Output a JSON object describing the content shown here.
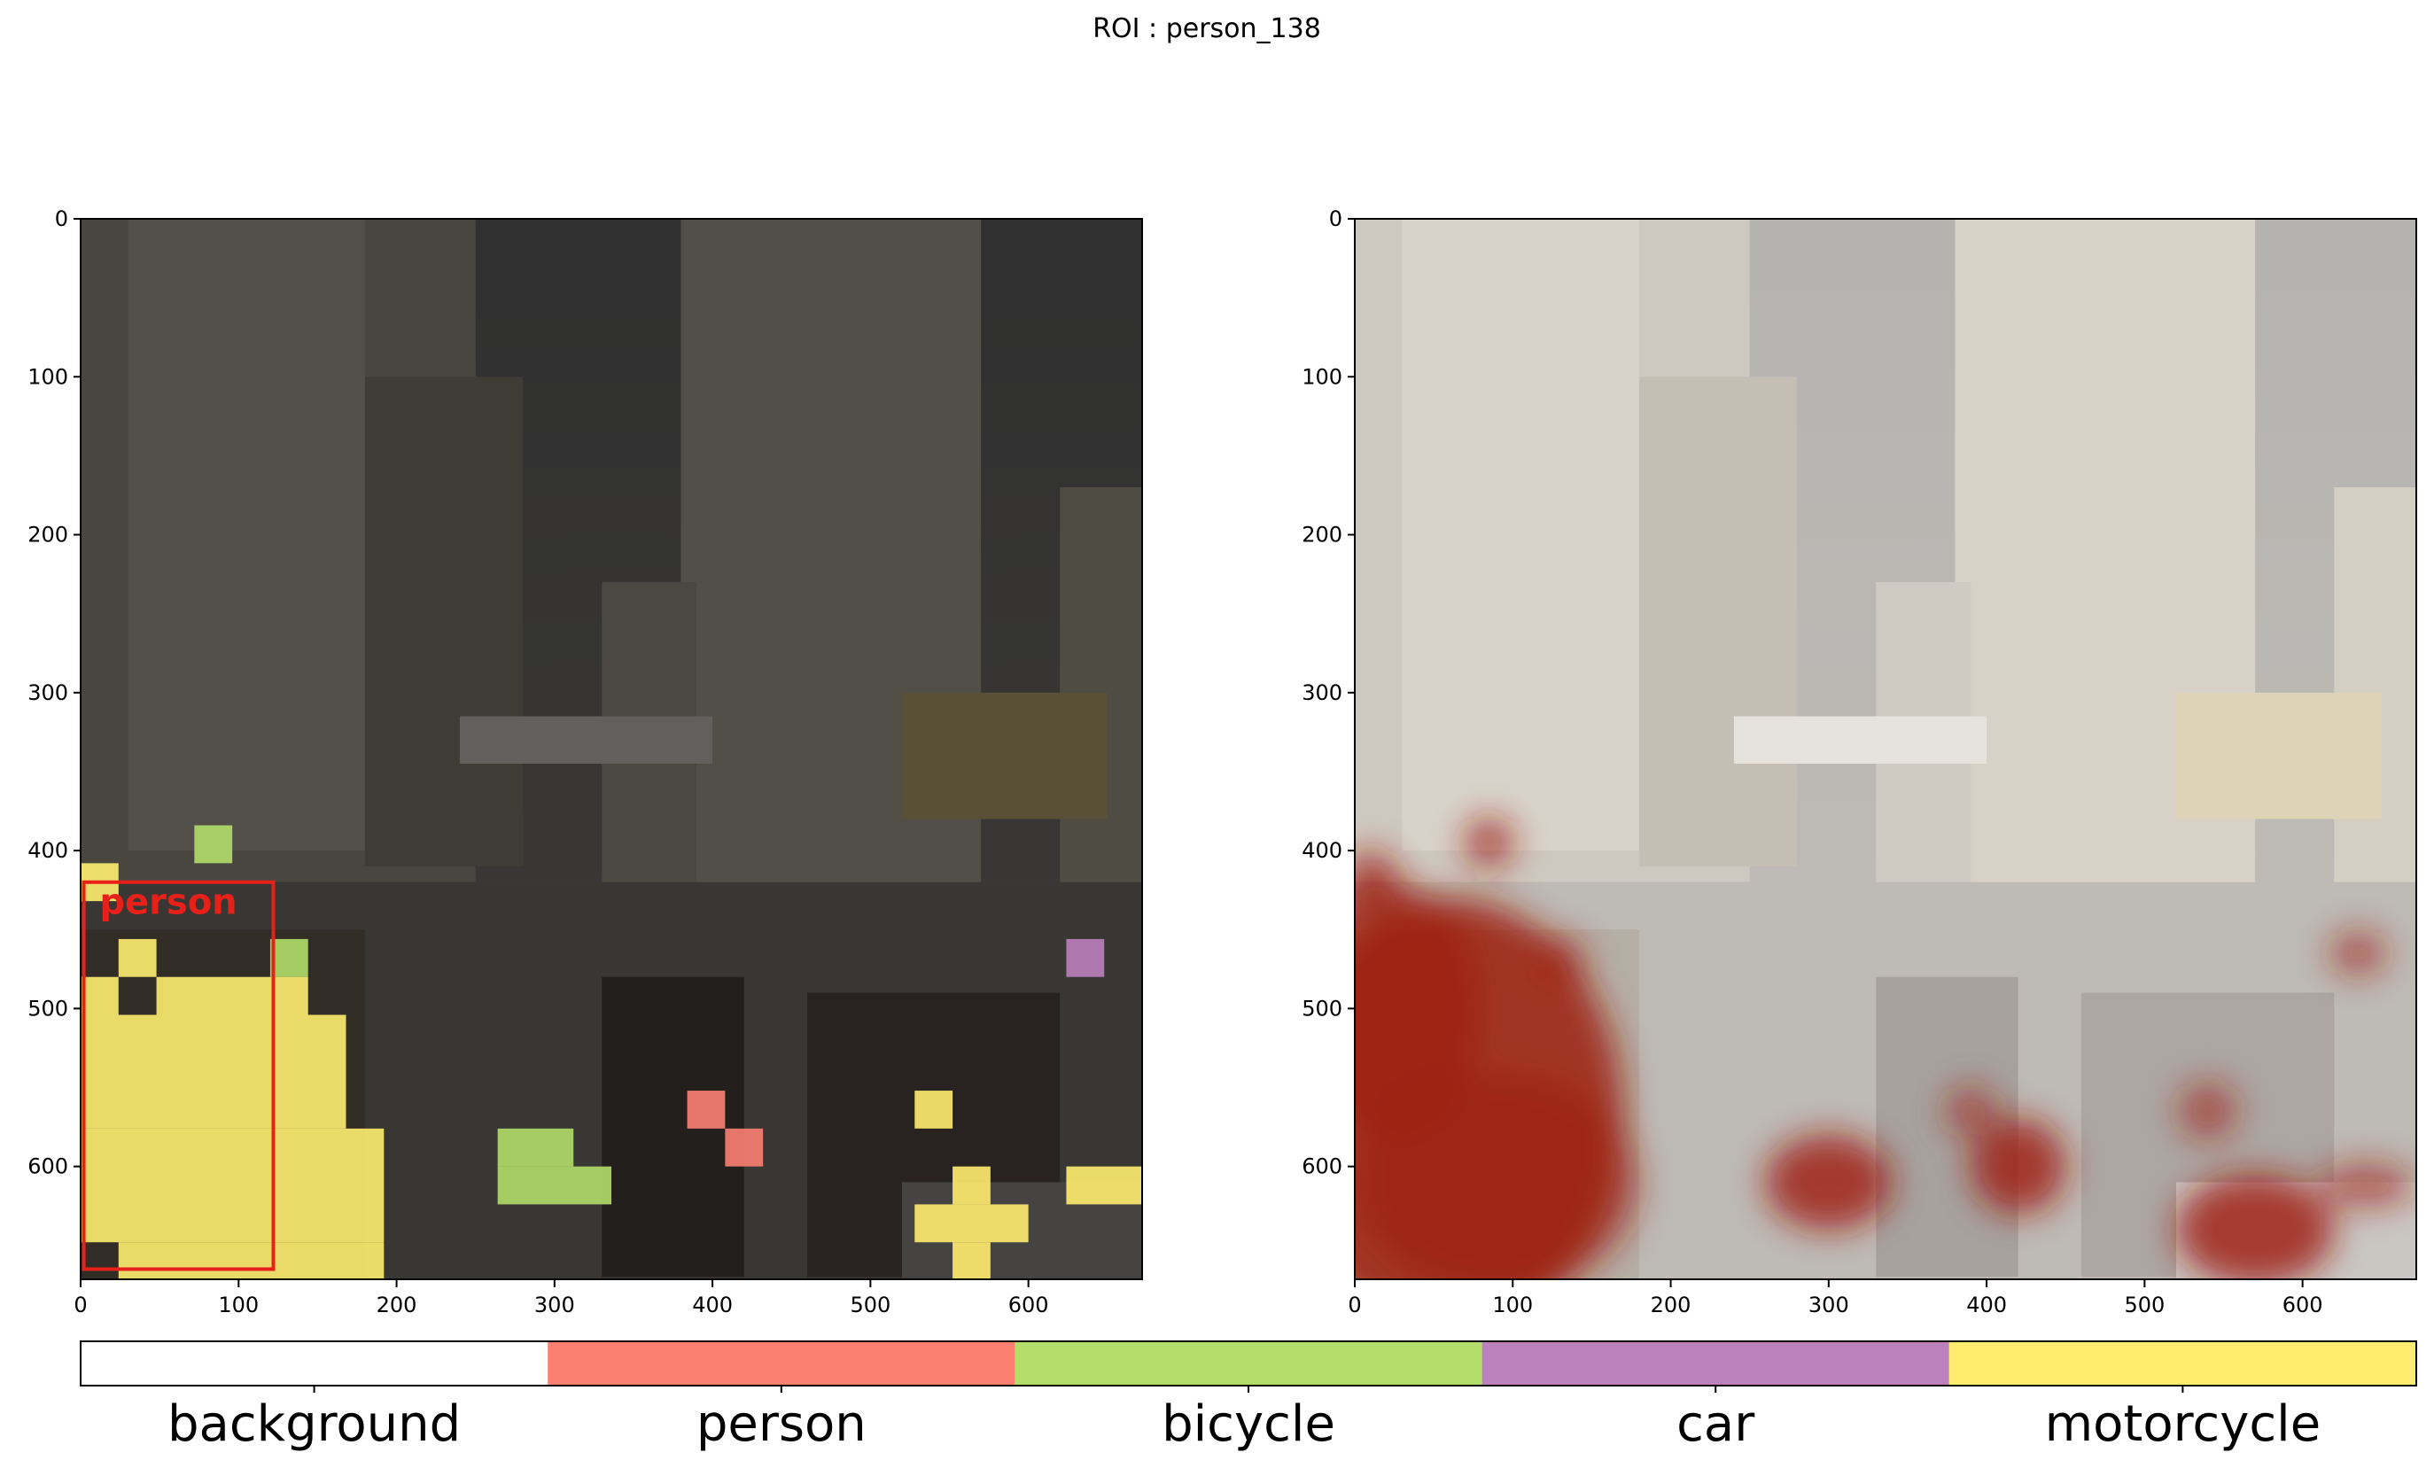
{
  "suptitle": "ROI : person_138",
  "chart_data": [
    {
      "type": "heatmap",
      "title": "",
      "xlim": [
        0,
        672
      ],
      "ylim": [
        672,
        0
      ],
      "xticks": [
        0,
        100,
        200,
        300,
        400,
        500,
        600
      ],
      "yticks": [
        0,
        100,
        200,
        300,
        400,
        500,
        600
      ],
      "xlabel": "",
      "ylabel": "",
      "cell_size": 24,
      "background": "dark street photo with apartment buildings, shops and people on motorcycles (rendered as stylized shapes)",
      "roi_box": {
        "label": "person",
        "x0": 2,
        "y0": 420,
        "x1": 122,
        "y1": 665,
        "color": "#e8201a"
      },
      "segments": [
        {
          "class": "bicycle",
          "x0": 72,
          "y0": 384,
          "x1": 96,
          "y1": 408
        },
        {
          "class": "motorcycle",
          "x0": 0,
          "y0": 408,
          "x1": 24,
          "y1": 432
        },
        {
          "class": "motorcycle",
          "x0": 24,
          "y0": 456,
          "x1": 48,
          "y1": 480
        },
        {
          "class": "bicycle",
          "x0": 120,
          "y0": 456,
          "x1": 144,
          "y1": 480
        },
        {
          "class": "motorcycle",
          "x0": 0,
          "y0": 480,
          "x1": 24,
          "y1": 504
        },
        {
          "class": "motorcycle",
          "x0": 48,
          "y0": 480,
          "x1": 144,
          "y1": 504
        },
        {
          "class": "motorcycle",
          "x0": 0,
          "y0": 504,
          "x1": 168,
          "y1": 576
        },
        {
          "class": "motorcycle",
          "x0": 0,
          "y0": 576,
          "x1": 192,
          "y1": 648
        },
        {
          "class": "motorcycle",
          "x0": 24,
          "y0": 648,
          "x1": 192,
          "y1": 672
        },
        {
          "class": "person",
          "x0": 384,
          "y0": 552,
          "x1": 408,
          "y1": 576
        },
        {
          "class": "person",
          "x0": 408,
          "y0": 576,
          "x1": 432,
          "y1": 600
        },
        {
          "class": "bicycle",
          "x0": 264,
          "y0": 576,
          "x1": 312,
          "y1": 600
        },
        {
          "class": "bicycle",
          "x0": 264,
          "y0": 600,
          "x1": 336,
          "y1": 624
        },
        {
          "class": "motorcycle",
          "x0": 528,
          "y0": 552,
          "x1": 552,
          "y1": 576
        },
        {
          "class": "motorcycle",
          "x0": 552,
          "y0": 600,
          "x1": 576,
          "y1": 624
        },
        {
          "class": "motorcycle",
          "x0": 528,
          "y0": 624,
          "x1": 600,
          "y1": 648
        },
        {
          "class": "motorcycle",
          "x0": 552,
          "y0": 648,
          "x1": 576,
          "y1": 672
        },
        {
          "class": "motorcycle",
          "x0": 624,
          "y0": 600,
          "x1": 672,
          "y1": 624
        },
        {
          "class": "car",
          "x0": 624,
          "y0": 456,
          "x1": 648,
          "y1": 480
        }
      ]
    },
    {
      "type": "heatmap",
      "title": "",
      "xlim": [
        0,
        672
      ],
      "ylim": [
        672,
        0
      ],
      "xticks": [
        0,
        100,
        200,
        300,
        400,
        500,
        600
      ],
      "yticks": [
        0,
        100,
        200,
        300,
        400,
        500,
        600
      ],
      "xlabel": "",
      "ylabel": "",
      "background": "same street photo with a light translucent overlay and red attention heat",
      "heat_spots": [
        {
          "x": 60,
          "y": 570,
          "rx": 110,
          "ry": 140,
          "intensity": 0.85
        },
        {
          "x": 20,
          "y": 500,
          "rx": 60,
          "ry": 80,
          "intensity": 0.7
        },
        {
          "x": 90,
          "y": 610,
          "rx": 90,
          "ry": 70,
          "intensity": 0.6
        },
        {
          "x": 85,
          "y": 395,
          "rx": 16,
          "ry": 16,
          "intensity": 0.7
        },
        {
          "x": 10,
          "y": 420,
          "rx": 18,
          "ry": 20,
          "intensity": 0.7
        },
        {
          "x": 130,
          "y": 470,
          "rx": 16,
          "ry": 16,
          "intensity": 0.6
        },
        {
          "x": 300,
          "y": 610,
          "rx": 40,
          "ry": 30,
          "intensity": 0.8
        },
        {
          "x": 420,
          "y": 600,
          "rx": 30,
          "ry": 30,
          "intensity": 0.8
        },
        {
          "x": 390,
          "y": 565,
          "rx": 16,
          "ry": 16,
          "intensity": 0.6
        },
        {
          "x": 540,
          "y": 565,
          "rx": 18,
          "ry": 18,
          "intensity": 0.6
        },
        {
          "x": 570,
          "y": 640,
          "rx": 50,
          "ry": 35,
          "intensity": 0.8
        },
        {
          "x": 640,
          "y": 612,
          "rx": 30,
          "ry": 14,
          "intensity": 0.6
        },
        {
          "x": 635,
          "y": 465,
          "rx": 18,
          "ry": 14,
          "intensity": 0.6
        }
      ]
    },
    {
      "type": "legend-colorbar",
      "categories": [
        "background",
        "person",
        "bicycle",
        "car",
        "motorcycle"
      ],
      "colors": [
        "#ffffff",
        "#fb8072",
        "#b3de69",
        "#bc80bd",
        "#ffed6f"
      ]
    }
  ]
}
